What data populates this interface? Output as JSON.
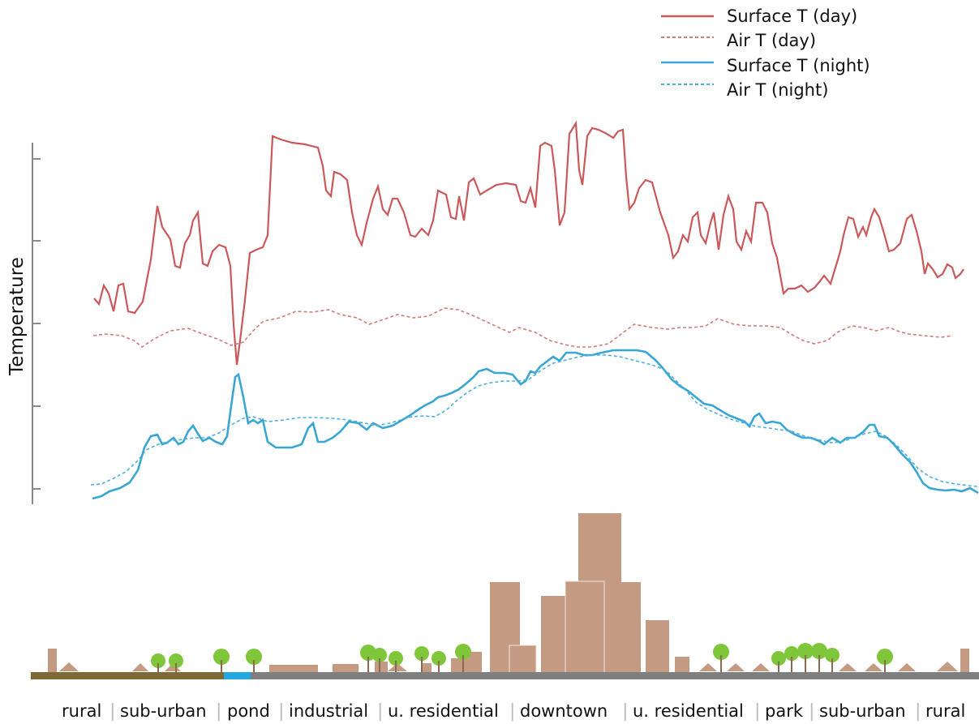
{
  "chart_data": {
    "type": "line",
    "ylabel": "Temperature",
    "xlabel": "",
    "title": "",
    "legend_position": "top-right",
    "x_segments": [
      "rural",
      "sub-urban",
      "pond",
      "industrial",
      "u. residential",
      "downtown",
      "u. residential",
      "park",
      "sub-urban",
      "rural"
    ],
    "y_ticks": 5,
    "series": [
      {
        "name": "Surface T (day)",
        "style": "solid",
        "color": "#c9595a"
      },
      {
        "name": "Air T (day)",
        "style": "dashed",
        "color": "#d47a7b"
      },
      {
        "name": "Surface T (night)",
        "style": "solid",
        "color": "#3aa6d3"
      },
      {
        "name": "Air T (night)",
        "style": "dashed",
        "color": "#4cb0dc"
      }
    ]
  },
  "colors": {
    "building": "#c49a82",
    "tree": "#7fc63a",
    "trunk": "#8a6a50",
    "ground_rural": "#7d6a35",
    "ground_pond": "#22a7e0",
    "ground_urban": "#7f7f7f",
    "axis": "#8a8a8a"
  }
}
